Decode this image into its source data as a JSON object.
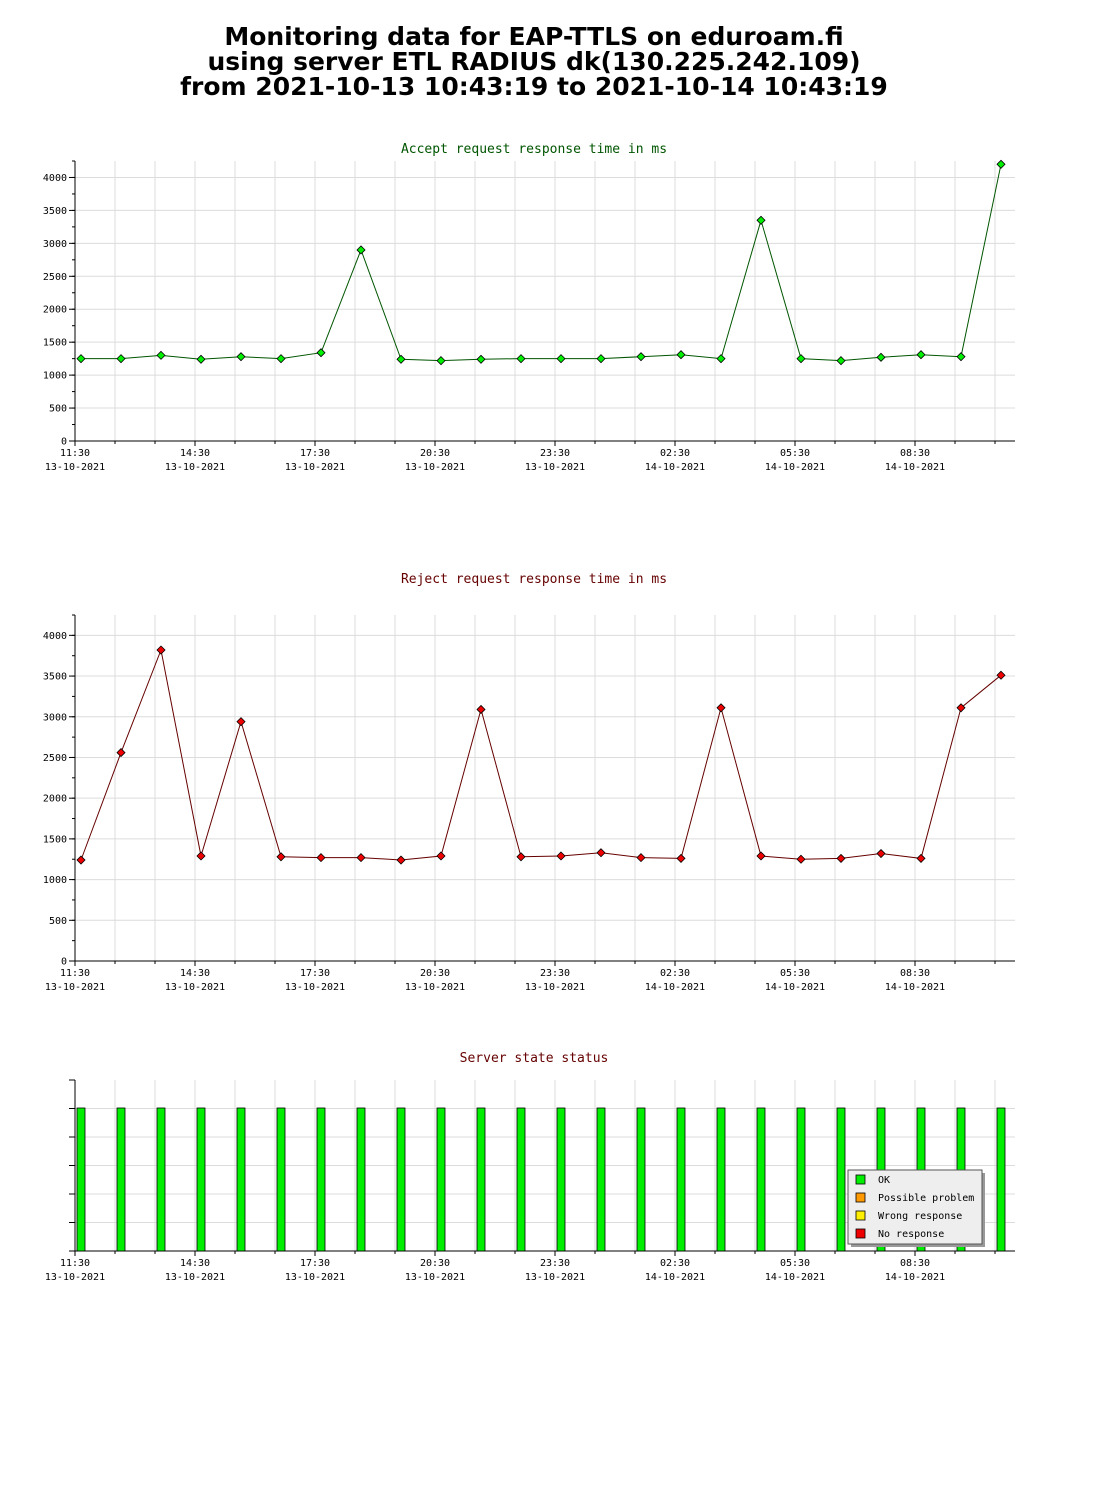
{
  "header": {
    "line1": "Monitoring data for EAP-TTLS on eduroam.fi",
    "line2": "using server ETL RADIUS dk(130.225.242.109)",
    "line3": "from 2021-10-13 10:43:19 to 2021-10-14 10:43:19"
  },
  "colors": {
    "ok": "#00ee00",
    "possible_problem": "#ff9900",
    "wrong_response": "#ffee00",
    "no_response": "#ee0000",
    "accept_title": "#005500",
    "reject_title": "#660000",
    "grid": "#dcdcdc"
  },
  "chart_data": [
    {
      "type": "line",
      "title": "Accept request response time in ms",
      "x_tick_labels": [
        {
          "time": "11:30",
          "date": "13-10-2021"
        },
        {
          "time": "14:30",
          "date": "13-10-2021"
        },
        {
          "time": "17:30",
          "date": "13-10-2021"
        },
        {
          "time": "20:30",
          "date": "13-10-2021"
        },
        {
          "time": "23:30",
          "date": "13-10-2021"
        },
        {
          "time": "02:30",
          "date": "14-10-2021"
        },
        {
          "time": "05:30",
          "date": "14-10-2021"
        },
        {
          "time": "08:30",
          "date": "14-10-2021"
        }
      ],
      "x": [
        "2021-10-13 11:30",
        "2021-10-13 12:30",
        "2021-10-13 13:30",
        "2021-10-13 14:30",
        "2021-10-13 15:30",
        "2021-10-13 16:30",
        "2021-10-13 17:30",
        "2021-10-13 18:30",
        "2021-10-13 19:30",
        "2021-10-13 20:30",
        "2021-10-13 21:30",
        "2021-10-13 22:30",
        "2021-10-13 23:30",
        "2021-10-14 00:30",
        "2021-10-14 01:30",
        "2021-10-14 02:30",
        "2021-10-14 03:30",
        "2021-10-14 04:30",
        "2021-10-14 05:30",
        "2021-10-14 06:30",
        "2021-10-14 07:30",
        "2021-10-14 08:30",
        "2021-10-14 09:30",
        "2021-10-14 10:30"
      ],
      "values": [
        1250,
        1250,
        1300,
        1240,
        1280,
        1250,
        1340,
        2900,
        1240,
        1220,
        1240,
        1250,
        1250,
        1250,
        1280,
        1310,
        1250,
        3350,
        1250,
        1220,
        1270,
        1310,
        1280,
        4200
      ],
      "y_ticks": [
        0,
        500,
        1000,
        1500,
        2000,
        2500,
        3000,
        3500,
        4000
      ],
      "ylim": [
        0,
        4250
      ],
      "marker_color": "#00ee00",
      "line_color": "#005500",
      "grid": true
    },
    {
      "type": "line",
      "title": "Reject request response time in ms",
      "x_tick_labels": [
        {
          "time": "11:30",
          "date": "13-10-2021"
        },
        {
          "time": "14:30",
          "date": "13-10-2021"
        },
        {
          "time": "17:30",
          "date": "13-10-2021"
        },
        {
          "time": "20:30",
          "date": "13-10-2021"
        },
        {
          "time": "23:30",
          "date": "13-10-2021"
        },
        {
          "time": "02:30",
          "date": "14-10-2021"
        },
        {
          "time": "05:30",
          "date": "14-10-2021"
        },
        {
          "time": "08:30",
          "date": "14-10-2021"
        }
      ],
      "x": [
        "2021-10-13 11:30",
        "2021-10-13 12:30",
        "2021-10-13 13:30",
        "2021-10-13 14:30",
        "2021-10-13 15:30",
        "2021-10-13 16:30",
        "2021-10-13 17:30",
        "2021-10-13 18:30",
        "2021-10-13 19:30",
        "2021-10-13 20:30",
        "2021-10-13 21:30",
        "2021-10-13 22:30",
        "2021-10-13 23:30",
        "2021-10-14 00:30",
        "2021-10-14 01:30",
        "2021-10-14 02:30",
        "2021-10-14 03:30",
        "2021-10-14 04:30",
        "2021-10-14 05:30",
        "2021-10-14 06:30",
        "2021-10-14 07:30",
        "2021-10-14 08:30",
        "2021-10-14 09:30",
        "2021-10-14 10:30"
      ],
      "values": [
        1240,
        2560,
        3820,
        1290,
        2940,
        1280,
        1270,
        1270,
        1240,
        1290,
        3090,
        1280,
        1290,
        1330,
        1270,
        1260,
        3110,
        1290,
        1250,
        1260,
        1320,
        1260,
        3110,
        3510
      ],
      "y_ticks": [
        0,
        500,
        1000,
        1500,
        2000,
        2500,
        3000,
        3500,
        4000
      ],
      "ylim": [
        0,
        4250
      ],
      "marker_color": "#ee0000",
      "line_color": "#660000",
      "grid": true
    },
    {
      "type": "bar",
      "title": "Server state status",
      "x_tick_labels": [
        {
          "time": "11:30",
          "date": "13-10-2021"
        },
        {
          "time": "14:30",
          "date": "13-10-2021"
        },
        {
          "time": "17:30",
          "date": "13-10-2021"
        },
        {
          "time": "20:30",
          "date": "13-10-2021"
        },
        {
          "time": "23:30",
          "date": "13-10-2021"
        },
        {
          "time": "02:30",
          "date": "14-10-2021"
        },
        {
          "time": "05:30",
          "date": "14-10-2021"
        },
        {
          "time": "08:30",
          "date": "14-10-2021"
        }
      ],
      "x": [
        "2021-10-13 11:30",
        "2021-10-13 12:30",
        "2021-10-13 13:30",
        "2021-10-13 14:30",
        "2021-10-13 15:30",
        "2021-10-13 16:30",
        "2021-10-13 17:30",
        "2021-10-13 18:30",
        "2021-10-13 19:30",
        "2021-10-13 20:30",
        "2021-10-13 21:30",
        "2021-10-13 22:30",
        "2021-10-13 23:30",
        "2021-10-14 00:30",
        "2021-10-14 01:30",
        "2021-10-14 02:30",
        "2021-10-14 03:30",
        "2021-10-14 04:30",
        "2021-10-14 05:30",
        "2021-10-14 06:30",
        "2021-10-14 07:30",
        "2021-10-14 08:30",
        "2021-10-14 09:30",
        "2021-10-14 10:30"
      ],
      "states": [
        "OK",
        "OK",
        "OK",
        "OK",
        "OK",
        "OK",
        "OK",
        "OK",
        "OK",
        "OK",
        "OK",
        "OK",
        "OK",
        "OK",
        "OK",
        "OK",
        "OK",
        "OK",
        "OK",
        "OK",
        "OK",
        "OK",
        "OK",
        "OK"
      ],
      "legend": {
        "placement": "bottom-right",
        "items": [
          {
            "label": "OK",
            "color": "#00ee00"
          },
          {
            "label": "Possible problem",
            "color": "#ff9900"
          },
          {
            "label": "Wrong response",
            "color": "#ffee00"
          },
          {
            "label": "No response",
            "color": "#ee0000"
          }
        ]
      },
      "grid": true
    }
  ]
}
